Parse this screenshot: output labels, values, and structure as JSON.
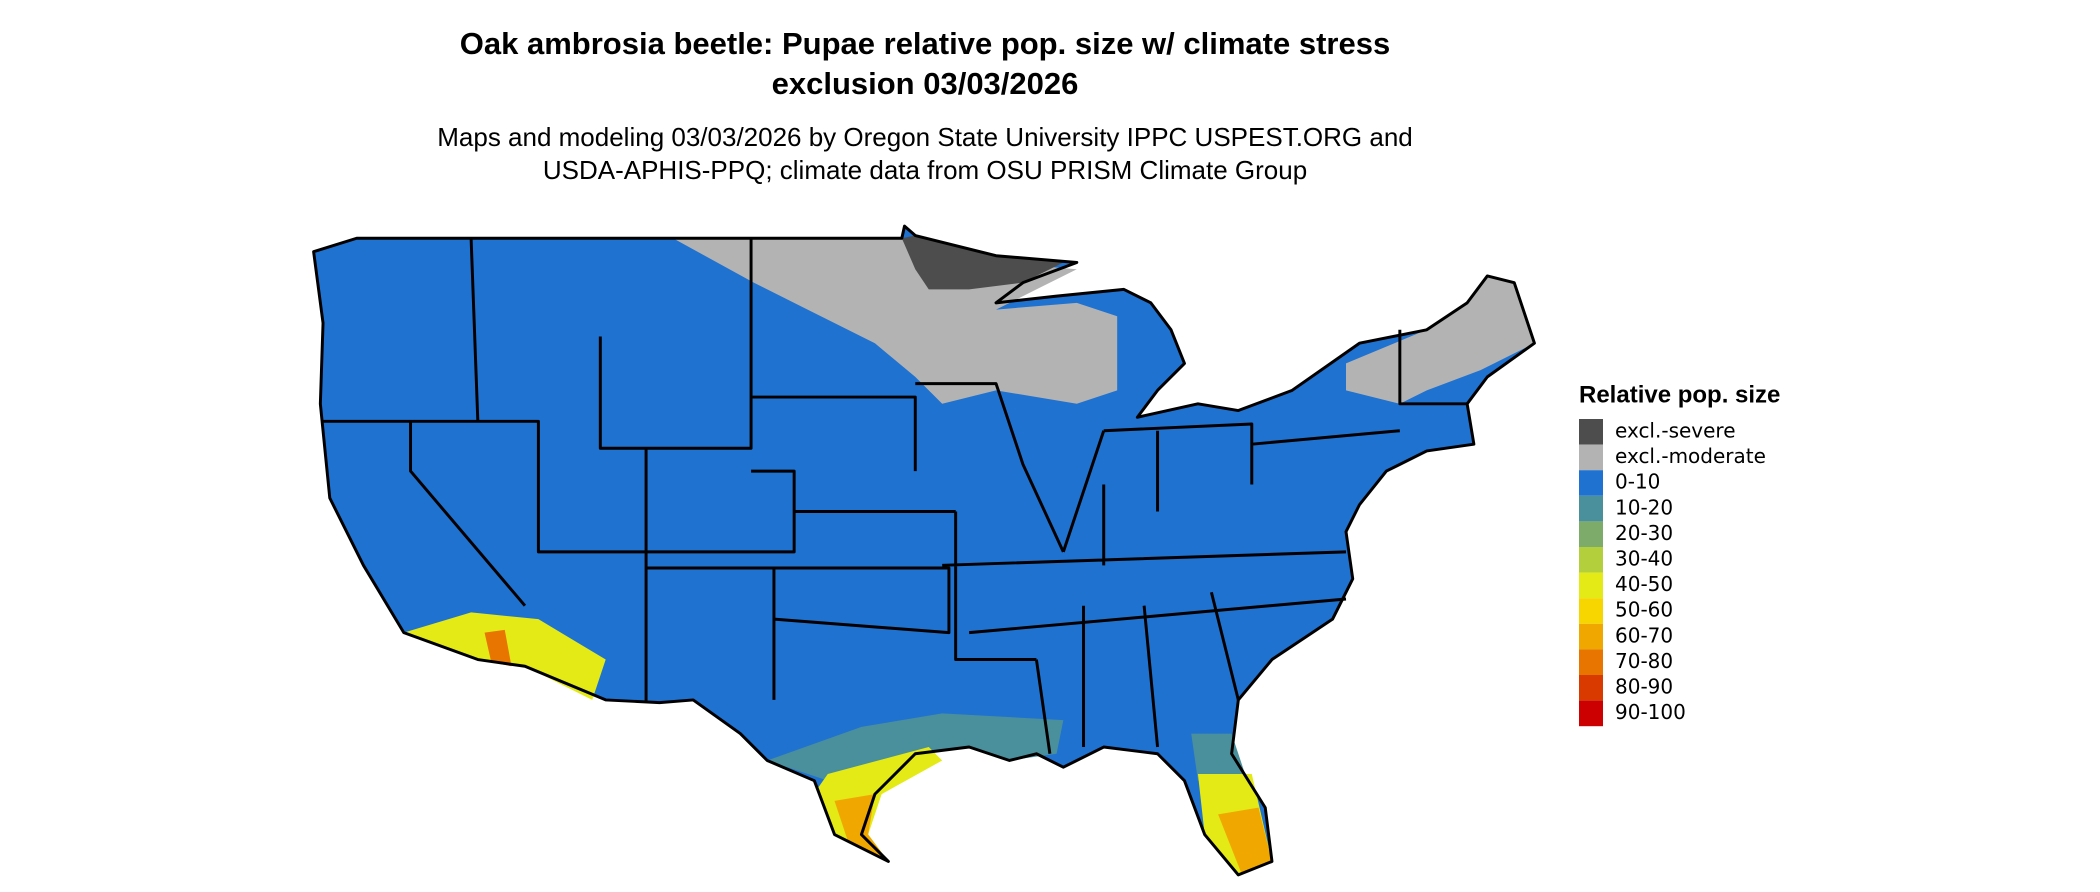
{
  "title": [
    "Oak ambrosia beetle: Pupae relative pop. size w/ climate stress",
    "exclusion 03/03/2026"
  ],
  "subtitle": [
    "Maps and modeling 03/03/2026 by Oregon State University IPPC USPEST.ORG and",
    "USDA-APHIS-PPQ; climate data from OSU PRISM Climate Group"
  ],
  "legend": {
    "title": "Relative pop. size",
    "items": [
      {
        "label": "excl.-severe",
        "color": "#4d4d4d"
      },
      {
        "label": "excl.-moderate",
        "color": "#b3b3b3"
      },
      {
        "label": "0-10",
        "color": "#1f72d0"
      },
      {
        "label": "10-20",
        "color": "#4a8f9c"
      },
      {
        "label": "20-30",
        "color": "#7cab6a"
      },
      {
        "label": "30-40",
        "color": "#b3cf3c"
      },
      {
        "label": "40-50",
        "color": "#e3ea16"
      },
      {
        "label": "50-60",
        "color": "#f7d600"
      },
      {
        "label": "60-70",
        "color": "#f0a800"
      },
      {
        "label": "70-80",
        "color": "#e87500"
      },
      {
        "label": "80-90",
        "color": "#d83a00"
      },
      {
        "label": "90-100",
        "color": "#cc0000"
      }
    ]
  }
}
